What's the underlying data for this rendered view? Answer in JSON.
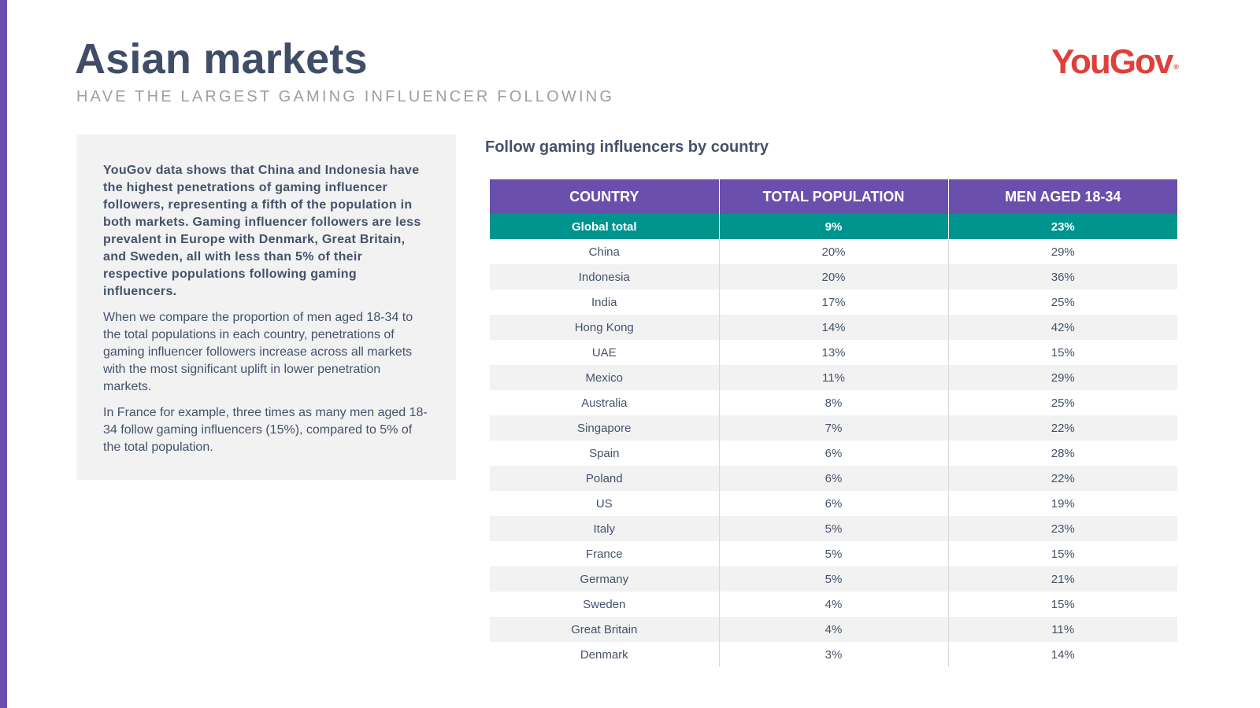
{
  "header": {
    "title": "Asian markets",
    "subtitle": "HAVE THE LARGEST GAMING INFLUENCER FOLLOWING",
    "logo_text": "YouGov",
    "logo_mark": "®"
  },
  "summary": {
    "lead": "YouGov data shows that China and Indonesia have the highest penetrations of gaming influencer followers, representing a fifth of the population in both markets. Gaming influencer followers are less prevalent in Europe with Denmark, Great Britain, and Sweden, all with less than 5% of their respective populations following gaming influencers.",
    "paragraph_2": "When we compare the proportion of men aged 18-34 to the total populations in each country, penetrations of gaming influencer followers increase across all markets with the most significant uplift in lower penetration markets.",
    "paragraph_3": "In France for example, three times as many men aged 18-34 follow gaming influencers (15%), compared to 5% of the total population."
  },
  "table": {
    "title": "Follow gaming influencers by country",
    "headers": [
      "COUNTRY",
      "TOTAL POPULATION",
      "MEN AGED 18-34"
    ],
    "global": {
      "country": "Global total",
      "total": "9%",
      "men": "23%"
    },
    "rows": [
      {
        "country": "China",
        "total": "20%",
        "men": "29%"
      },
      {
        "country": "Indonesia",
        "total": "20%",
        "men": "36%"
      },
      {
        "country": "India",
        "total": "17%",
        "men": "25%"
      },
      {
        "country": "Hong Kong",
        "total": "14%",
        "men": "42%"
      },
      {
        "country": "UAE",
        "total": "13%",
        "men": "15%"
      },
      {
        "country": "Mexico",
        "total": "11%",
        "men": "29%"
      },
      {
        "country": "Australia",
        "total": "8%",
        "men": "25%"
      },
      {
        "country": "Singapore",
        "total": "7%",
        "men": "22%"
      },
      {
        "country": "Spain",
        "total": "6%",
        "men": "28%"
      },
      {
        "country": "Poland",
        "total": "6%",
        "men": "22%"
      },
      {
        "country": "US",
        "total": "6%",
        "men": "19%"
      },
      {
        "country": "Italy",
        "total": "5%",
        "men": "23%"
      },
      {
        "country": "France",
        "total": "5%",
        "men": "15%"
      },
      {
        "country": "Germany",
        "total": "5%",
        "men": "21%"
      },
      {
        "country": "Sweden",
        "total": "4%",
        "men": "15%"
      },
      {
        "country": "Great Britain",
        "total": "4%",
        "men": "11%"
      },
      {
        "country": "Denmark",
        "total": "3%",
        "men": "14%"
      }
    ]
  },
  "colors": {
    "accent_purple": "#6a4fad",
    "teal": "#00948f",
    "logo_red": "#e0403a",
    "text_slate": "#44526a"
  }
}
